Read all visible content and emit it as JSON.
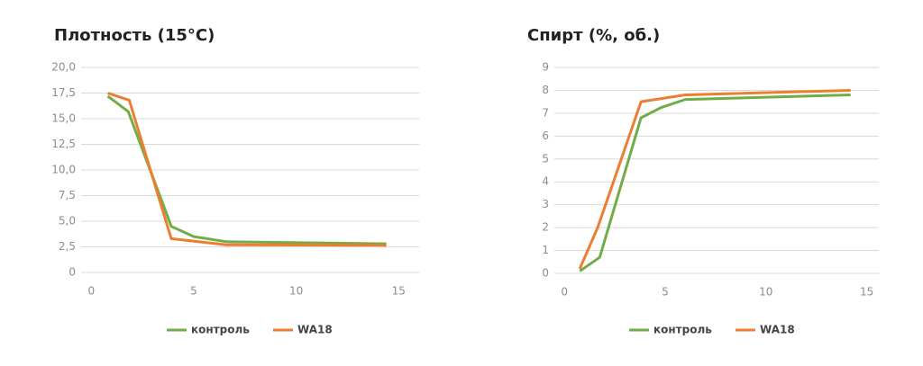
{
  "chart_data": [
    {
      "type": "line",
      "title": "Плотность (15°C)",
      "xlim": [
        -0.5,
        16
      ],
      "xticks": [
        0,
        5,
        10,
        15
      ],
      "ylim": [
        0,
        20
      ],
      "yticks": [
        0,
        {
          "value": 2.5,
          "label": "2,5"
        },
        {
          "value": 5,
          "label": "5,0"
        },
        {
          "value": 7.5,
          "label": "7,5"
        },
        {
          "value": 10,
          "label": "10,0"
        },
        {
          "value": 12.5,
          "label": "12,5"
        },
        {
          "value": 15,
          "label": "15,0"
        },
        {
          "value": 17.5,
          "label": "17,5"
        },
        {
          "value": 20,
          "label": "20,0"
        }
      ],
      "grid": true,
      "legend": "bottom",
      "series": [
        {
          "name": "контроль",
          "color": "#70ad47",
          "x": [
            0.8,
            1.8,
            3.9,
            5,
            6.6,
            14.4
          ],
          "values": [
            17.2,
            15.7,
            4.5,
            3.5,
            3.0,
            2.8
          ]
        },
        {
          "name": "WA18",
          "color": "#ed7d31",
          "x": [
            0.8,
            1.85,
            3.9,
            6.6,
            14.4
          ],
          "values": [
            17.5,
            16.8,
            3.3,
            2.7,
            2.65
          ]
        }
      ]
    },
    {
      "type": "line",
      "title": "Спирт (%, об.)",
      "xlim": [
        -0.5,
        15.6
      ],
      "xticks": [
        0,
        5,
        10,
        15
      ],
      "ylim": [
        0,
        9
      ],
      "yticks": [
        0,
        1,
        2,
        3,
        4,
        5,
        6,
        7,
        8,
        9
      ],
      "grid": true,
      "legend": "bottom",
      "series": [
        {
          "name": "контроль",
          "color": "#70ad47",
          "x": [
            0.76,
            1.75,
            3.8,
            4.8,
            6.0,
            14.2
          ],
          "values": [
            0.1,
            0.7,
            6.8,
            7.25,
            7.6,
            7.8
          ]
        },
        {
          "name": "WA18",
          "color": "#ed7d31",
          "x": [
            0.76,
            1.65,
            3.8,
            6.0,
            14.2
          ],
          "values": [
            0.2,
            2.0,
            7.5,
            7.8,
            8.0
          ]
        }
      ]
    }
  ]
}
